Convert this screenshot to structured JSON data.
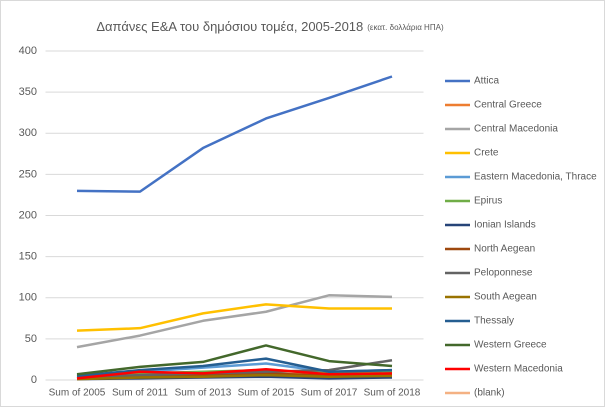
{
  "chart_data": {
    "type": "line",
    "title": "Δαπάνες Ε&Α του δημόσιου τομέα, 2005-2018",
    "title_note": "(εκατ. δολλάρια ΗΠΑ)",
    "categories": [
      "Sum of 2005",
      "Sum of 2011",
      "Sum of 2013",
      "Sum of 2015",
      "Sum of 2017",
      "Sum of 2018"
    ],
    "ylim": [
      0,
      400
    ],
    "yticks": [
      0,
      50,
      100,
      150,
      200,
      250,
      300,
      350,
      400
    ],
    "grid": true,
    "legend": "right",
    "series": [
      {
        "name": "Attica",
        "color": "#4472c4",
        "values": [
          230,
          229,
          282,
          318,
          343,
          369
        ]
      },
      {
        "name": "Central Greece",
        "color": "#ed7d31",
        "values": [
          3,
          5,
          6,
          8,
          6,
          7
        ]
      },
      {
        "name": "Central Macedonia",
        "color": "#a5a5a5",
        "values": [
          40,
          54,
          72,
          83,
          103,
          101
        ]
      },
      {
        "name": "Crete",
        "color": "#ffc000",
        "values": [
          60,
          63,
          81,
          92,
          87,
          87
        ]
      },
      {
        "name": "Eastern Macedonia, Thrace",
        "color": "#5b9bd5",
        "values": [
          5,
          10,
          15,
          20,
          10,
          12
        ]
      },
      {
        "name": "Epirus",
        "color": "#70ad47",
        "values": [
          4,
          8,
          10,
          12,
          8,
          10
        ]
      },
      {
        "name": "Ionian Islands",
        "color": "#264478",
        "values": [
          1,
          2,
          3,
          4,
          2,
          3
        ]
      },
      {
        "name": "North Aegean",
        "color": "#9e480e",
        "values": [
          2,
          4,
          6,
          8,
          5,
          6
        ]
      },
      {
        "name": "Peloponnese",
        "color": "#636363",
        "values": [
          3,
          6,
          8,
          10,
          12,
          24
        ]
      },
      {
        "name": "South Aegean",
        "color": "#997300",
        "values": [
          1,
          3,
          4,
          6,
          4,
          5
        ]
      },
      {
        "name": "Thessaly",
        "color": "#255e91",
        "values": [
          5,
          12,
          17,
          26,
          10,
          12
        ]
      },
      {
        "name": "Western Greece",
        "color": "#43682b",
        "values": [
          7,
          16,
          22,
          42,
          23,
          17
        ]
      },
      {
        "name": "Western Macedonia",
        "color": "#ff0000",
        "values": [
          2,
          10,
          8,
          13,
          7,
          8
        ]
      },
      {
        "name": "(blank)",
        "color": "#f4b183",
        "values": [
          null,
          null,
          null,
          null,
          null,
          null
        ]
      }
    ]
  }
}
